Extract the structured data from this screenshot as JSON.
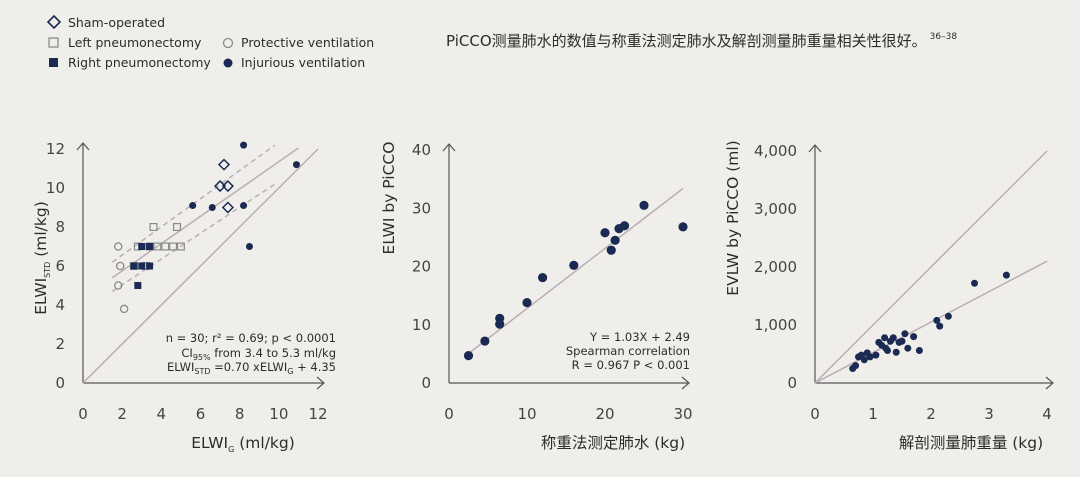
{
  "header": {
    "text": "PiCCO测量肺水的数值与称重法测定肺水及解剖测量肺重量相关性很好。",
    "refs": "36–38"
  },
  "legend": [
    {
      "marker": "diamond-open",
      "label": "Sham-operated"
    },
    {
      "marker": "square-open",
      "label": "Left pneumonectomy"
    },
    {
      "marker": "square-filled",
      "label": "Right pneumonectomy"
    },
    {
      "marker": "circle-open",
      "label": "Protective ventilation"
    },
    {
      "marker": "circle-filled",
      "label": "Injurious ventilation"
    }
  ],
  "colors": {
    "navy": "#1b2a52",
    "gray_marker": "#8a8a8a",
    "line": "#b9aeb4",
    "axis": "#555555",
    "background": "#efeeea"
  },
  "chart_data": [
    {
      "type": "scatter",
      "ylabel": {
        "main": "ELWI",
        "sub": "STD",
        "unit": " (ml/kg)"
      },
      "xlabel": {
        "main": "ELWI",
        "sub": "G",
        "unit": " (ml/kg)"
      },
      "xlim": [
        0,
        12
      ],
      "ylim": [
        0,
        12
      ],
      "xticks": [
        "0",
        "2",
        "4",
        "6",
        "8",
        "10",
        "12"
      ],
      "yticks": [
        "0",
        "2",
        "4",
        "6",
        "8",
        "10",
        "12"
      ],
      "series": [
        {
          "marker": "diamond-open",
          "points": [
            [
              7.2,
              11.2
            ],
            [
              7.0,
              10.1
            ],
            [
              7.4,
              10.1
            ],
            [
              7.4,
              9.0
            ]
          ]
        },
        {
          "marker": "square-open",
          "points": [
            [
              3.6,
              8.0
            ],
            [
              4.8,
              8.0
            ],
            [
              2.8,
              7.0
            ],
            [
              3.4,
              7.0
            ],
            [
              3.8,
              7.0
            ],
            [
              4.2,
              7.0
            ],
            [
              4.6,
              7.0
            ],
            [
              5.0,
              7.0
            ],
            [
              2.6,
              6.0
            ],
            [
              3.2,
              6.0
            ]
          ]
        },
        {
          "marker": "square-filled",
          "points": [
            [
              3.0,
              7.0
            ],
            [
              3.4,
              7.0
            ],
            [
              2.6,
              6.0
            ],
            [
              3.0,
              6.0
            ],
            [
              3.4,
              6.0
            ],
            [
              2.8,
              5.0
            ]
          ]
        },
        {
          "marker": "circle-open",
          "points": [
            [
              1.8,
              7.0
            ],
            [
              1.9,
              6.0
            ],
            [
              1.8,
              5.0
            ],
            [
              2.1,
              3.8
            ]
          ]
        },
        {
          "marker": "circle-filled",
          "points": [
            [
              8.2,
              12.2
            ],
            [
              5.6,
              9.1
            ],
            [
              6.6,
              9.0
            ],
            [
              8.2,
              9.1
            ],
            [
              8.5,
              7.0
            ],
            [
              10.9,
              11.2
            ]
          ]
        }
      ],
      "lines": [
        {
          "style": "solid",
          "kind": "identity",
          "from": [
            0,
            0
          ],
          "to": [
            12,
            12
          ]
        },
        {
          "style": "solid",
          "kind": "regression",
          "from": [
            1.5,
            5.4
          ],
          "to": [
            11.0,
            12.05
          ]
        },
        {
          "style": "dashed",
          "kind": "ci-upper",
          "from": [
            1.5,
            6.2
          ],
          "to": [
            9.8,
            12.2
          ]
        },
        {
          "style": "dashed",
          "kind": "ci-lower",
          "from": [
            1.5,
            4.7
          ],
          "to": [
            9.8,
            10.2
          ]
        }
      ],
      "annotation": {
        "line1": "n = 30; r² = 0.69; p < 0.0001",
        "line2_main": "CI",
        "line2_sub": "95%",
        "line2_rest": " from 3.4 to 5.3 ml/kg",
        "line3_a": "ELWI",
        "line3_sub1": "STD",
        "line3_b": " =0.70 xELWI",
        "line3_sub2": "G",
        "line3_c": " + 4.35"
      }
    },
    {
      "type": "scatter",
      "ylabel": "ELWI by PiCCO",
      "xlabel": "称重法测定肺水 (kg)",
      "xlim": [
        0,
        30
      ],
      "ylim": [
        0,
        40
      ],
      "xticks": [
        "0",
        "10",
        "20",
        "30"
      ],
      "xtick_values": [
        0,
        10,
        20,
        30
      ],
      "yticks": [
        "0",
        "10",
        "20",
        "30",
        "40"
      ],
      "ytick_values": [
        0,
        10,
        20,
        30,
        40
      ],
      "series": [
        {
          "marker": "circle-filled",
          "points": [
            [
              2.5,
              4.7
            ],
            [
              4.6,
              7.2
            ],
            [
              6.5,
              10.1
            ],
            [
              6.5,
              11.1
            ],
            [
              10,
              13.8
            ],
            [
              12,
              18.1
            ],
            [
              16,
              20.2
            ],
            [
              20,
              25.8
            ],
            [
              20.8,
              22.8
            ],
            [
              21.3,
              24.5
            ],
            [
              21.8,
              26.5
            ],
            [
              22.5,
              27.0
            ],
            [
              25,
              30.5
            ],
            [
              30,
              26.8
            ]
          ]
        }
      ],
      "lines": [
        {
          "style": "solid",
          "kind": "regression",
          "from": [
            2,
            4.55
          ],
          "to": [
            30,
            33.4
          ]
        }
      ],
      "annotation": {
        "line1": "Y = 1.03X + 2.49",
        "line2": "Spearman correlation",
        "line3": "R = 0.967   P < 0.001"
      }
    },
    {
      "type": "scatter",
      "ylabel": "EVLW by PiCCO (ml)",
      "xlabel": "解剖测量肺重量 (kg)",
      "xlim": [
        0,
        4
      ],
      "ylim": [
        0,
        4000
      ],
      "xticks": [
        "0",
        "1",
        "2",
        "3",
        "4"
      ],
      "xtick_values": [
        0,
        1,
        2,
        3,
        4
      ],
      "yticks": [
        "0",
        "1,000",
        "2,000",
        "3,000",
        "4,000"
      ],
      "ytick_values": [
        0,
        1000,
        2000,
        3000,
        4000
      ],
      "series": [
        {
          "marker": "circle-filled",
          "points": [
            [
              0.65,
              250
            ],
            [
              0.7,
              300
            ],
            [
              0.75,
              450
            ],
            [
              0.8,
              480
            ],
            [
              0.85,
              400
            ],
            [
              0.9,
              520
            ],
            [
              0.95,
              450
            ],
            [
              1.05,
              480
            ],
            [
              1.1,
              700
            ],
            [
              1.15,
              650
            ],
            [
              1.2,
              780
            ],
            [
              1.22,
              600
            ],
            [
              1.25,
              560
            ],
            [
              1.3,
              720
            ],
            [
              1.35,
              780
            ],
            [
              1.4,
              530
            ],
            [
              1.45,
              700
            ],
            [
              1.5,
              720
            ],
            [
              1.55,
              850
            ],
            [
              1.6,
              600
            ],
            [
              1.7,
              800
            ],
            [
              1.8,
              560
            ],
            [
              2.1,
              1080
            ],
            [
              2.15,
              980
            ],
            [
              2.3,
              1150
            ],
            [
              2.75,
              1720
            ],
            [
              3.3,
              1860
            ]
          ]
        }
      ],
      "lines": [
        {
          "style": "solid",
          "kind": "identity",
          "from": [
            0,
            0
          ],
          "to": [
            4,
            4000
          ]
        },
        {
          "style": "solid",
          "kind": "regression",
          "from": [
            0,
            0
          ],
          "to": [
            4,
            2100
          ]
        }
      ]
    }
  ]
}
